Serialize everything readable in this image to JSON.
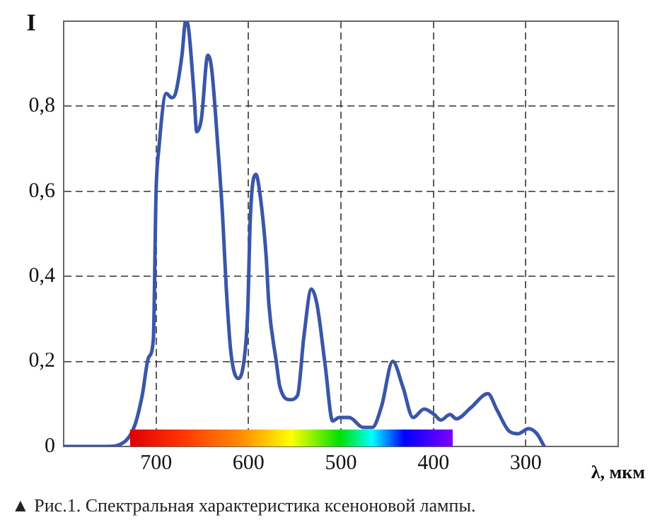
{
  "chart_data": {
    "type": "line",
    "ylabel": "I",
    "xlabel": "λ, мкм",
    "annotations": [
      "▲ Рис.1. Спектральная характеристика ксеноновой лампы."
    ],
    "xlim": [
      800,
      200
    ],
    "xticks": [
      700,
      600,
      500,
      400,
      300
    ],
    "ylim": [
      0,
      1
    ],
    "yticks": [
      {
        "value": 0,
        "label": "0"
      },
      {
        "value": 0.2,
        "label": "0,2"
      },
      {
        "value": 0.4,
        "label": "0,4"
      },
      {
        "value": 0.6,
        "label": "0,6"
      },
      {
        "value": 0.8,
        "label": "0,8"
      }
    ],
    "grid": true,
    "legend": false,
    "marker": "none",
    "line_style": "solid",
    "series": [
      {
        "color": "#3a56a8",
        "x": [
          800,
          753,
          733,
          723,
          715,
          708,
          703,
          700,
          697,
          689,
          683,
          679,
          672,
          668,
          665,
          659,
          656,
          651,
          644,
          640,
          633,
          628,
          624,
          619,
          611,
          605,
          601,
          598,
          592,
          589,
          581,
          578,
          570,
          566,
          555,
          547,
          540,
          532,
          526,
          517,
          509,
          502,
          491,
          476,
          466,
          456,
          444,
          433,
          422,
          410,
          399,
          392,
          382,
          375,
          360,
          341,
          331,
          318,
          308,
          297,
          288,
          280
        ],
        "values": [
          0,
          0,
          0.013,
          0.05,
          0.12,
          0.21,
          0.25,
          0.6,
          0.7,
          0.83,
          0.82,
          0.83,
          0.92,
          1.0,
          0.985,
          0.83,
          0.74,
          0.77,
          0.92,
          0.89,
          0.7,
          0.54,
          0.37,
          0.22,
          0.16,
          0.2,
          0.31,
          0.54,
          0.64,
          0.615,
          0.45,
          0.335,
          0.2,
          0.14,
          0.11,
          0.12,
          0.26,
          0.37,
          0.335,
          0.19,
          0.06,
          0.068,
          0.068,
          0.045,
          0.045,
          0.095,
          0.2,
          0.14,
          0.068,
          0.088,
          0.075,
          0.062,
          0.075,
          0.065,
          0.09,
          0.124,
          0.085,
          0.036,
          0.03,
          0.042,
          0.03,
          0
        ]
      }
    ]
  }
}
